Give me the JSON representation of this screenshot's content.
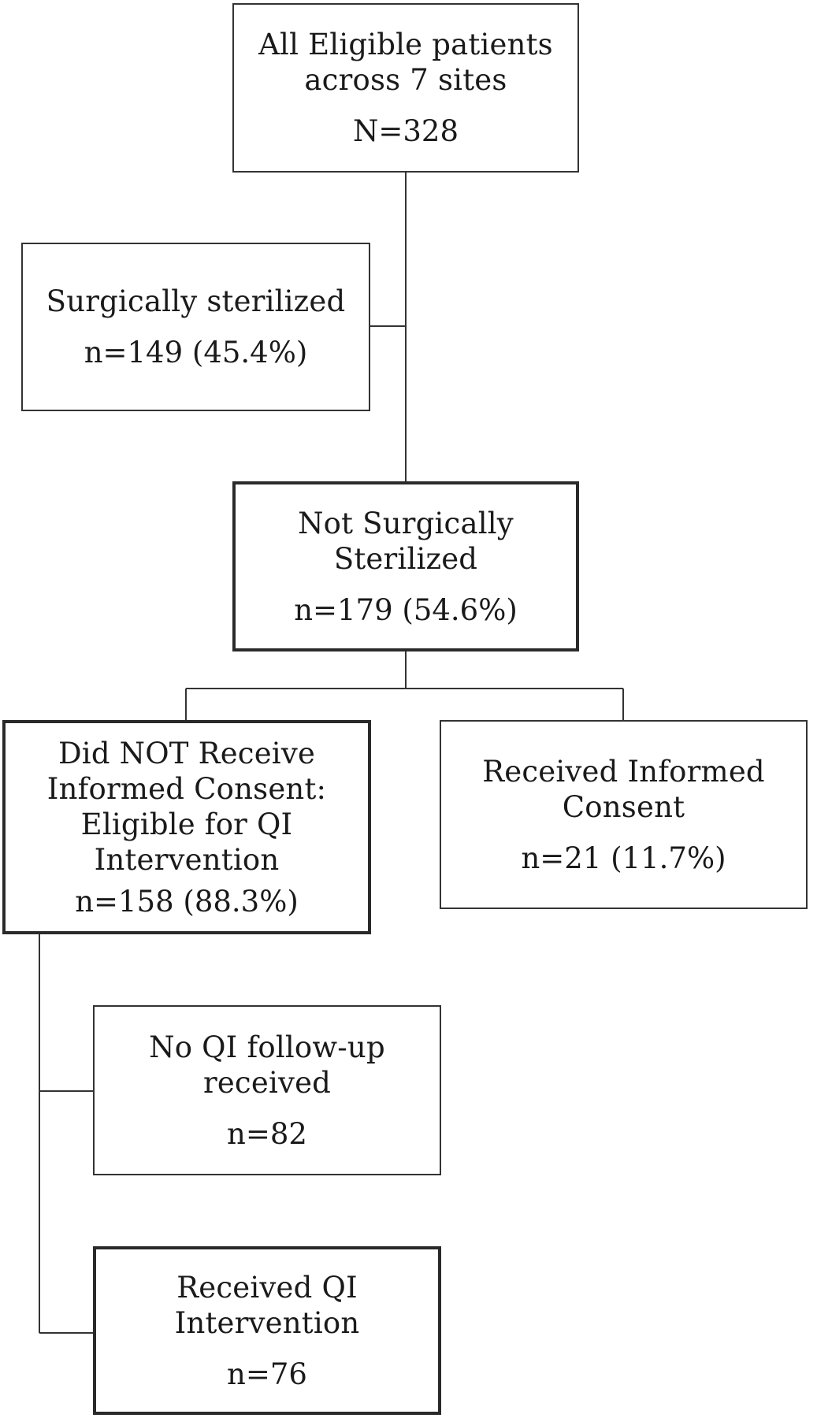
{
  "nodes": {
    "all_eligible": {
      "lines": [
        "All Eligible patients",
        "across 7 sites"
      ],
      "count": "N=328"
    },
    "surgically_sterilized": {
      "lines": [
        "Surgically sterilized"
      ],
      "count": "n=149 (45.4%)"
    },
    "not_sterilized": {
      "lines": [
        "Not Surgically",
        "Sterilized"
      ],
      "count": "n=179 (54.6%)"
    },
    "no_consent": {
      "lines": [
        "Did NOT Receive",
        "Informed Consent:",
        "Eligible for QI",
        "Intervention"
      ],
      "count": "n=158 (88.3%)"
    },
    "received_consent": {
      "lines": [
        "Received Informed",
        "Consent"
      ],
      "count": "n=21 (11.7%)"
    },
    "no_followup": {
      "lines": [
        "No QI follow-up",
        "received"
      ],
      "count": "n=82"
    },
    "received_qi": {
      "lines": [
        "Received QI",
        "Intervention"
      ],
      "count": "n=76"
    }
  }
}
